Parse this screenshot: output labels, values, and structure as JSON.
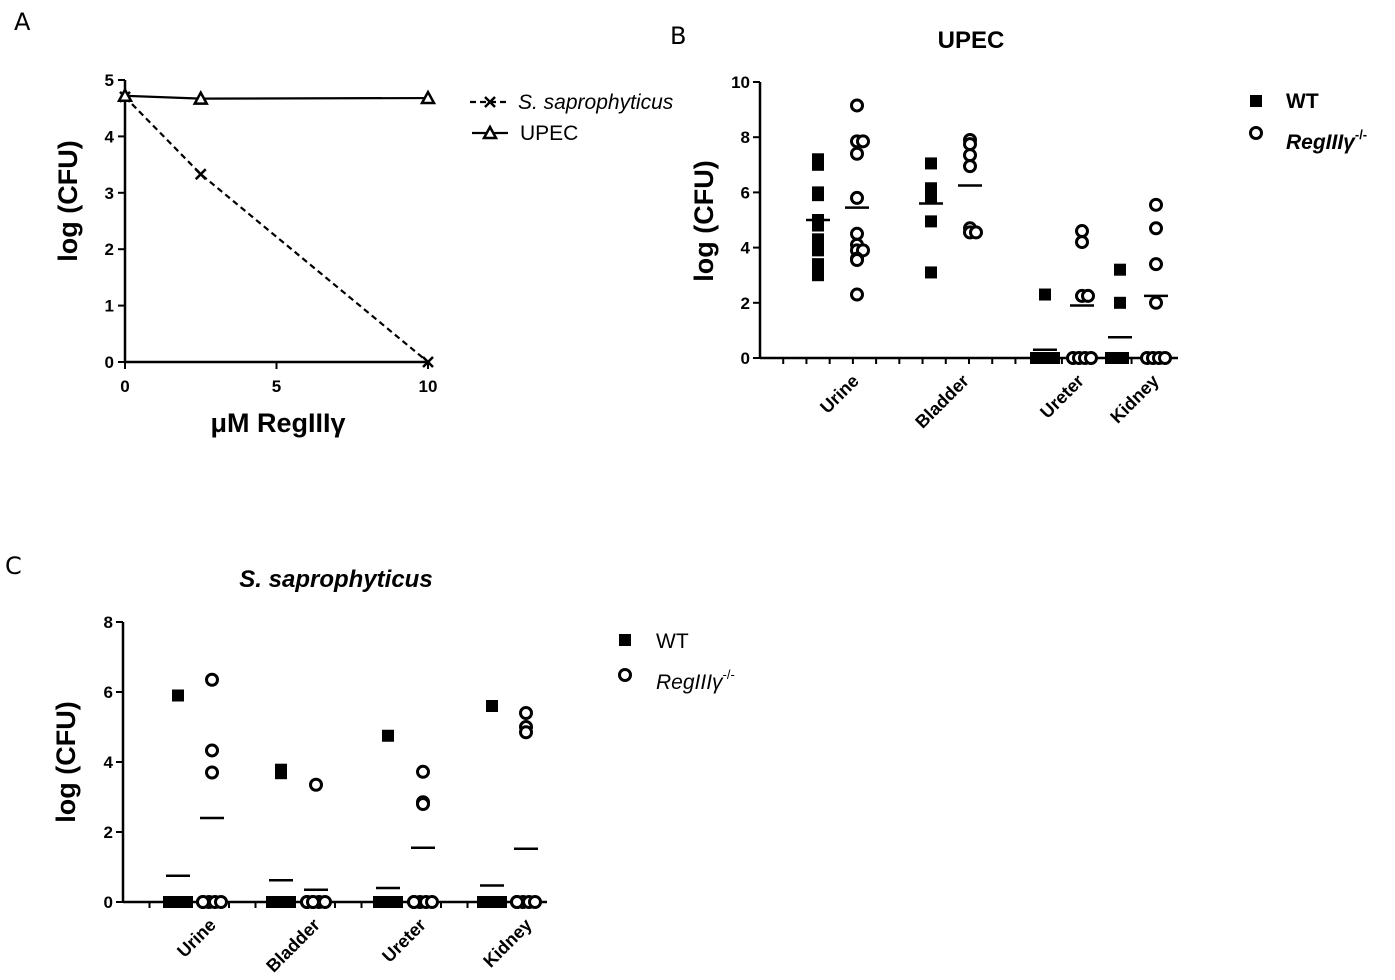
{
  "panels": {
    "a": "A",
    "b": "B",
    "c": "C"
  },
  "chart_data": [
    {
      "panel": "A",
      "type": "line",
      "title": "",
      "xlabel": "μM RegIIIγ",
      "ylabel": "log (CFU)",
      "xlim": [
        0,
        10
      ],
      "ylim": [
        0,
        5
      ],
      "xticks": [
        "0",
        "5",
        "10"
      ],
      "yticks": [
        "0",
        "1",
        "2",
        "3",
        "4",
        "5"
      ],
      "legend_position": "top-right",
      "series": [
        {
          "name": "S. saprophyticus",
          "style": "dashed",
          "marker": "x",
          "x": [
            0,
            2.5,
            10
          ],
          "y": [
            4.7,
            3.33,
            0.0
          ]
        },
        {
          "name": "UPEC",
          "style": "solid",
          "marker": "triangle",
          "x": [
            0,
            2.5,
            10
          ],
          "y": [
            4.72,
            4.67,
            4.68
          ]
        }
      ]
    },
    {
      "panel": "B",
      "type": "scatter",
      "title": "UPEC",
      "xlabel": "",
      "ylabel": "log (CFU)",
      "ylim": [
        0,
        10
      ],
      "yticks": [
        "0",
        "2",
        "4",
        "6",
        "8",
        "10"
      ],
      "categories": [
        "Urine",
        "Bladder",
        "Ureter",
        "Kidney"
      ],
      "legend_position": "top-right",
      "legend": [
        {
          "label": "WT",
          "sup": "",
          "marker": "square"
        },
        {
          "label": "RegIIIγ",
          "sup": "-/-",
          "marker": "circle"
        }
      ],
      "series": [
        {
          "name": "WT",
          "marker": "square",
          "points": [
            [
              0,
              7.2
            ],
            [
              0,
              7.0
            ],
            [
              0,
              6.0
            ],
            [
              0,
              5.9
            ],
            [
              0,
              5.0
            ],
            [
              0,
              4.8
            ],
            [
              0,
              4.3
            ],
            [
              0,
              3.9
            ],
            [
              0,
              3.4
            ],
            [
              0,
              3.0
            ],
            [
              1,
              7.05
            ],
            [
              1,
              6.15
            ],
            [
              1,
              5.8
            ],
            [
              1,
              4.95
            ],
            [
              1,
              3.1
            ],
            [
              2,
              2.3
            ],
            [
              2,
              0
            ],
            [
              2,
              0
            ],
            [
              2,
              0
            ],
            [
              2,
              0
            ],
            [
              2,
              0
            ],
            [
              3,
              3.2
            ],
            [
              3,
              2.0
            ],
            [
              3,
              0
            ],
            [
              3,
              0
            ],
            [
              3,
              0
            ]
          ],
          "means": [
            5.0,
            5.6,
            0.3,
            0.75
          ]
        },
        {
          "name": "RegIIIγ -/-",
          "marker": "circle",
          "points": [
            [
              0,
              9.15
            ],
            [
              0,
              7.85
            ],
            [
              0,
              7.85
            ],
            [
              0,
              7.4
            ],
            [
              0,
              5.8
            ],
            [
              0,
              4.5
            ],
            [
              0,
              4.1
            ],
            [
              0,
              3.9
            ],
            [
              0,
              3.9
            ],
            [
              0,
              3.6
            ],
            [
              0,
              3.55
            ],
            [
              0,
              2.3
            ],
            [
              1,
              7.9
            ],
            [
              1,
              7.75
            ],
            [
              1,
              7.35
            ],
            [
              1,
              6.95
            ],
            [
              1,
              4.7
            ],
            [
              1,
              4.55
            ],
            [
              1,
              4.55
            ],
            [
              2,
              4.6
            ],
            [
              2,
              4.2
            ],
            [
              2,
              2.25
            ],
            [
              2,
              2.25
            ],
            [
              2,
              0
            ],
            [
              2,
              0
            ],
            [
              2,
              0
            ],
            [
              2,
              0
            ],
            [
              3,
              5.55
            ],
            [
              3,
              4.7
            ],
            [
              3,
              3.4
            ],
            [
              3,
              2.0
            ],
            [
              3,
              0
            ],
            [
              3,
              0
            ],
            [
              3,
              0
            ],
            [
              3,
              0
            ]
          ],
          "means": [
            5.45,
            6.25,
            1.9,
            2.25
          ]
        }
      ]
    },
    {
      "panel": "C",
      "type": "scatter",
      "title": "S. saprophyticus",
      "xlabel": "",
      "ylabel": "log (CFU)",
      "ylim": [
        0,
        8
      ],
      "yticks": [
        "0",
        "2",
        "4",
        "6",
        "8"
      ],
      "categories": [
        "Urine",
        "Bladder",
        "Ureter",
        "Kidney"
      ],
      "legend_position": "top-right",
      "legend": [
        {
          "label": "WT",
          "sup": "",
          "marker": "square"
        },
        {
          "label": "RegIIIγ",
          "sup": "-/-",
          "marker": "circle"
        }
      ],
      "series": [
        {
          "name": "WT",
          "marker": "square",
          "points": [
            [
              0,
              5.9
            ],
            [
              0,
              0
            ],
            [
              0,
              0
            ],
            [
              0,
              0
            ],
            [
              0,
              0
            ],
            [
              0,
              0
            ],
            [
              0,
              0
            ],
            [
              1,
              3.78
            ],
            [
              1,
              3.68
            ],
            [
              1,
              0
            ],
            [
              1,
              0
            ],
            [
              1,
              0
            ],
            [
              1,
              0
            ],
            [
              1,
              0
            ],
            [
              2,
              4.75
            ],
            [
              2,
              0
            ],
            [
              2,
              0
            ],
            [
              2,
              0
            ],
            [
              2,
              0
            ],
            [
              2,
              0
            ],
            [
              2,
              0
            ],
            [
              3,
              5.6
            ],
            [
              3,
              0
            ],
            [
              3,
              0
            ],
            [
              3,
              0
            ],
            [
              3,
              0
            ],
            [
              3,
              0
            ],
            [
              3,
              0
            ]
          ],
          "means": [
            0.75,
            0.62,
            0.4,
            0.47
          ]
        },
        {
          "name": "RegIIIγ -/-",
          "marker": "circle",
          "points": [
            [
              0,
              6.35
            ],
            [
              0,
              4.33
            ],
            [
              0,
              3.7
            ],
            [
              0,
              0
            ],
            [
              0,
              0
            ],
            [
              0,
              0
            ],
            [
              0,
              0
            ],
            [
              0,
              0
            ],
            [
              1,
              3.35
            ],
            [
              1,
              0
            ],
            [
              1,
              0
            ],
            [
              1,
              0
            ],
            [
              1,
              0
            ],
            [
              1,
              0
            ],
            [
              1,
              0
            ],
            [
              2,
              3.72
            ],
            [
              2,
              2.85
            ],
            [
              2,
              2.8
            ],
            [
              2,
              0
            ],
            [
              2,
              0
            ],
            [
              2,
              0
            ],
            [
              2,
              0
            ],
            [
              2,
              0
            ],
            [
              3,
              5.4
            ],
            [
              3,
              5.0
            ],
            [
              3,
              4.85
            ],
            [
              3,
              0
            ],
            [
              3,
              0
            ],
            [
              3,
              0
            ],
            [
              3,
              0
            ],
            [
              3,
              0
            ]
          ],
          "means": [
            2.4,
            0.35,
            1.55,
            1.52
          ]
        }
      ]
    }
  ]
}
